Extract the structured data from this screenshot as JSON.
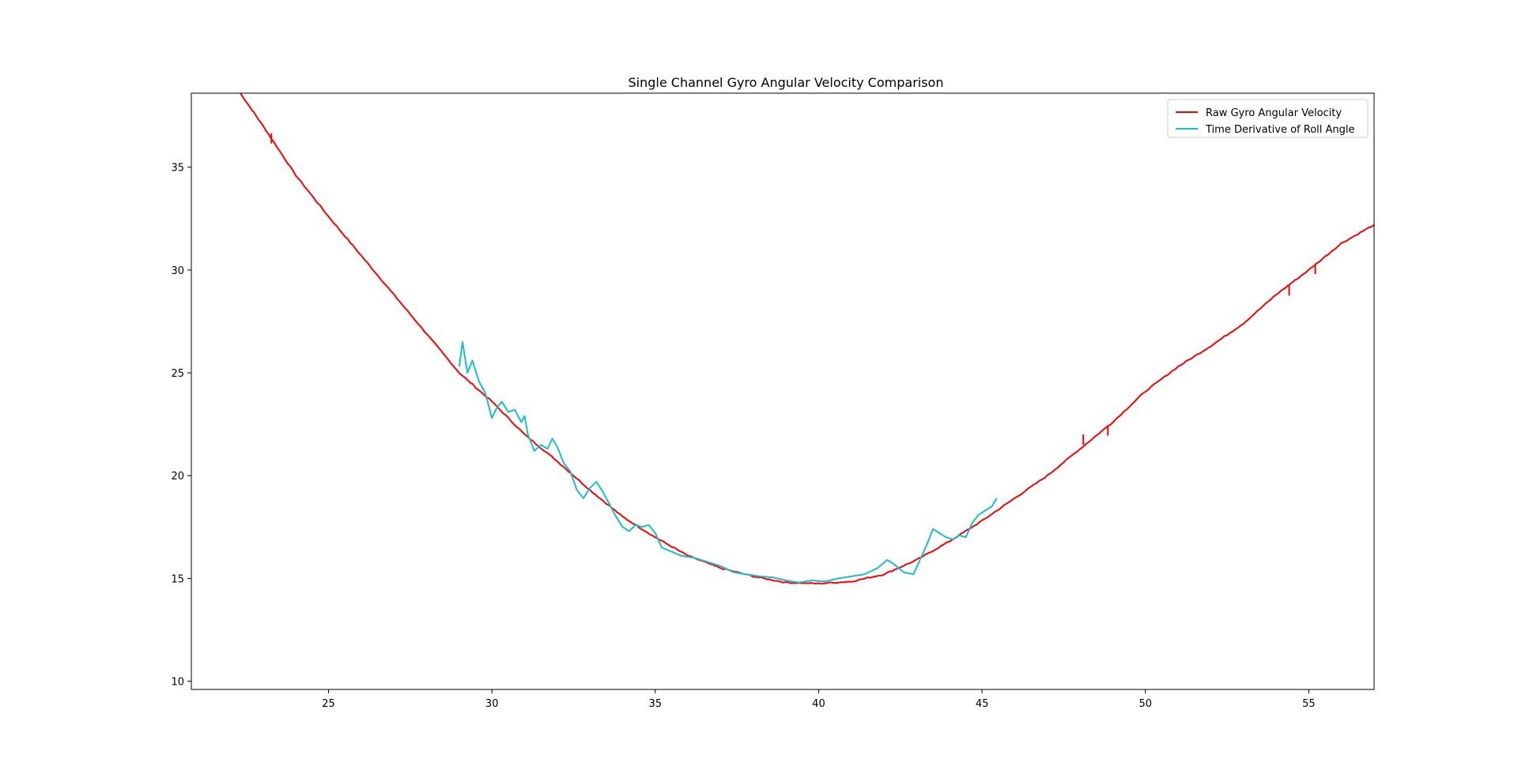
{
  "chart_data": {
    "type": "line",
    "title": "Single Channel Gyro Angular Velocity Comparison",
    "xlabel": "",
    "ylabel": "",
    "xlim": [
      20.8,
      57.0
    ],
    "ylim": [
      9.6,
      38.6
    ],
    "xticks": [
      25,
      30,
      35,
      40,
      45,
      50,
      55
    ],
    "yticks": [
      10,
      15,
      20,
      25,
      30,
      35
    ],
    "grid": false,
    "legend_position": "top-right",
    "series": [
      {
        "name": "Raw Gyro Angular Velocity",
        "color": "#ff0000",
        "points": [
          [
            22.3,
            38.6
          ],
          [
            23.0,
            37.0
          ],
          [
            24.0,
            34.6
          ],
          [
            25.0,
            32.6
          ],
          [
            26.0,
            30.7
          ],
          [
            27.0,
            28.8
          ],
          [
            28.0,
            26.9
          ],
          [
            29.0,
            25.0
          ],
          [
            30.0,
            23.6
          ],
          [
            31.0,
            22.0
          ],
          [
            32.0,
            20.7
          ],
          [
            33.0,
            19.3
          ],
          [
            34.0,
            18.0
          ],
          [
            35.0,
            17.0
          ],
          [
            36.0,
            16.1
          ],
          [
            37.0,
            15.5
          ],
          [
            38.0,
            15.1
          ],
          [
            39.0,
            14.8
          ],
          [
            40.0,
            14.75
          ],
          [
            41.0,
            14.85
          ],
          [
            42.0,
            15.2
          ],
          [
            43.0,
            15.9
          ],
          [
            44.0,
            16.8
          ],
          [
            45.0,
            17.8
          ],
          [
            46.0,
            18.9
          ],
          [
            47.0,
            20.0
          ],
          [
            48.0,
            21.3
          ],
          [
            49.0,
            22.6
          ],
          [
            50.0,
            24.1
          ],
          [
            51.0,
            25.3
          ],
          [
            52.0,
            26.3
          ],
          [
            53.0,
            27.4
          ],
          [
            54.0,
            28.8
          ],
          [
            55.0,
            30.0
          ],
          [
            56.0,
            31.3
          ],
          [
            57.0,
            32.2
          ]
        ],
        "spikes": [
          [
            23.25,
            36.6
          ],
          [
            48.1,
            21.95
          ],
          [
            48.85,
            22.4
          ],
          [
            54.4,
            29.2
          ],
          [
            55.2,
            30.25
          ]
        ]
      },
      {
        "name": "Time Derivative of Roll Angle",
        "color": "#17becf",
        "points": [
          [
            29.0,
            25.3
          ],
          [
            29.1,
            26.5
          ],
          [
            29.25,
            25.0
          ],
          [
            29.4,
            25.6
          ],
          [
            29.6,
            24.6
          ],
          [
            29.8,
            24.0
          ],
          [
            30.0,
            22.8
          ],
          [
            30.15,
            23.3
          ],
          [
            30.3,
            23.6
          ],
          [
            30.5,
            23.1
          ],
          [
            30.7,
            23.2
          ],
          [
            30.9,
            22.6
          ],
          [
            31.0,
            22.9
          ],
          [
            31.1,
            22.0
          ],
          [
            31.3,
            21.2
          ],
          [
            31.5,
            21.5
          ],
          [
            31.7,
            21.3
          ],
          [
            31.85,
            21.8
          ],
          [
            32.0,
            21.4
          ],
          [
            32.2,
            20.6
          ],
          [
            32.4,
            20.2
          ],
          [
            32.6,
            19.3
          ],
          [
            32.8,
            18.9
          ],
          [
            33.0,
            19.4
          ],
          [
            33.2,
            19.7
          ],
          [
            33.4,
            19.2
          ],
          [
            33.6,
            18.6
          ],
          [
            33.8,
            18.0
          ],
          [
            34.0,
            17.5
          ],
          [
            34.2,
            17.3
          ],
          [
            34.4,
            17.6
          ],
          [
            34.6,
            17.5
          ],
          [
            34.8,
            17.6
          ],
          [
            35.0,
            17.2
          ],
          [
            35.2,
            16.5
          ],
          [
            35.5,
            16.3
          ],
          [
            35.8,
            16.1
          ],
          [
            36.2,
            16.0
          ],
          [
            36.6,
            15.8
          ],
          [
            37.0,
            15.6
          ],
          [
            37.4,
            15.3
          ],
          [
            37.8,
            15.2
          ],
          [
            38.2,
            15.1
          ],
          [
            38.6,
            15.05
          ],
          [
            39.0,
            14.9
          ],
          [
            39.4,
            14.8
          ],
          [
            39.8,
            14.9
          ],
          [
            40.2,
            14.85
          ],
          [
            40.6,
            15.0
          ],
          [
            41.0,
            15.1
          ],
          [
            41.4,
            15.2
          ],
          [
            41.8,
            15.5
          ],
          [
            42.1,
            15.9
          ],
          [
            42.3,
            15.7
          ],
          [
            42.6,
            15.3
          ],
          [
            42.9,
            15.2
          ],
          [
            43.1,
            15.9
          ],
          [
            43.3,
            16.6
          ],
          [
            43.5,
            17.4
          ],
          [
            43.7,
            17.2
          ],
          [
            43.9,
            17.0
          ],
          [
            44.1,
            16.9
          ],
          [
            44.3,
            17.1
          ],
          [
            44.5,
            17.0
          ],
          [
            44.7,
            17.7
          ],
          [
            44.9,
            18.1
          ],
          [
            45.1,
            18.3
          ],
          [
            45.3,
            18.5
          ],
          [
            45.45,
            18.9
          ]
        ]
      }
    ]
  }
}
